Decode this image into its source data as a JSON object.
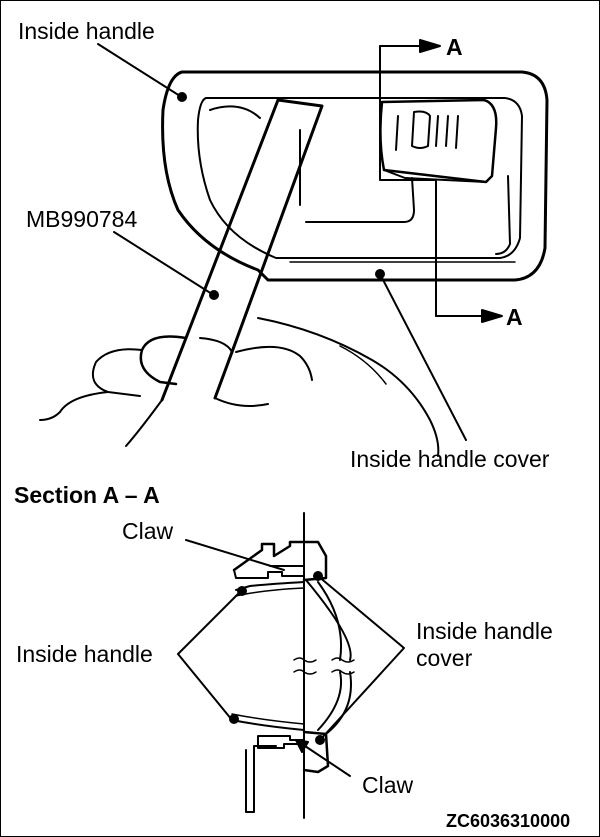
{
  "diagram": {
    "top_view": {
      "label_inside_handle": "Inside handle",
      "label_tool": "MB990784",
      "label_cover": "Inside handle cover",
      "section_marker": "A"
    },
    "section_view": {
      "heading": "Section A – A",
      "label_claw_top": "Claw",
      "label_claw_bottom": "Claw",
      "label_inside_handle": "Inside handle",
      "label_cover_line1": "Inside handle",
      "label_cover_line2": "cover"
    },
    "figure_code": "ZC6036310000"
  }
}
